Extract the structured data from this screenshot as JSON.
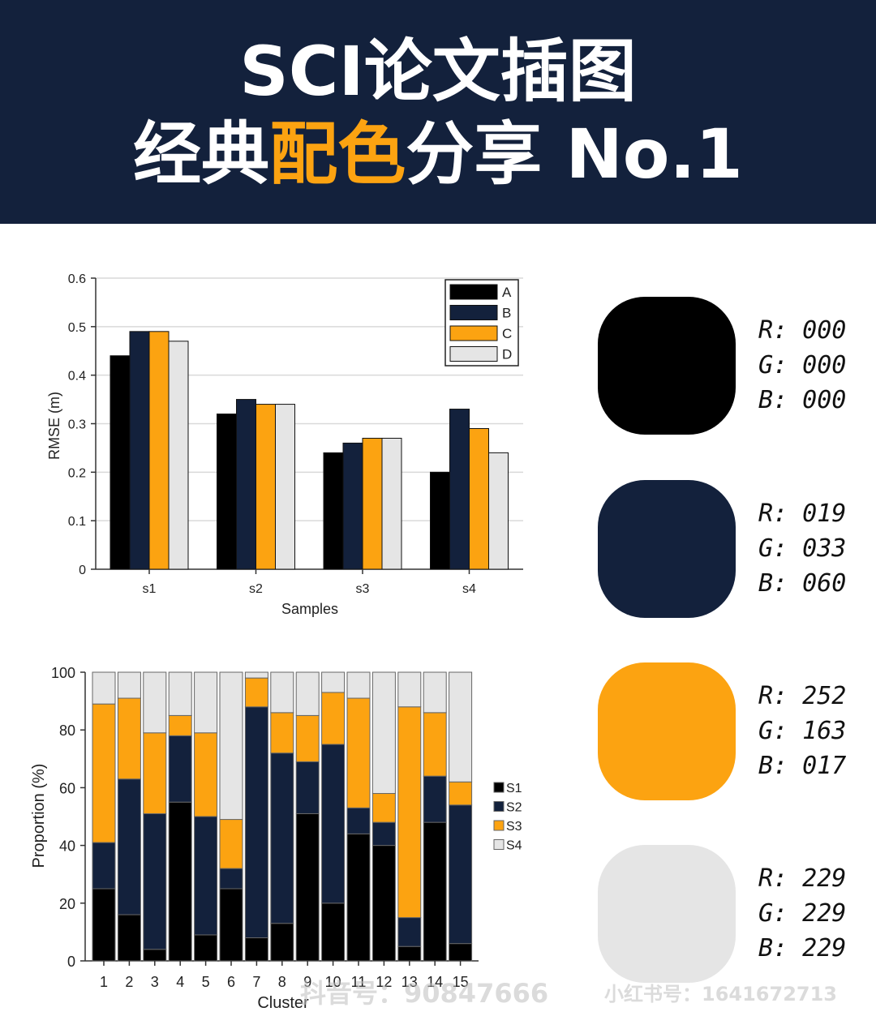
{
  "header": {
    "title_line1": "SCI论文插图",
    "title_line2_a": "经典",
    "title_line2_b": "配色",
    "title_line2_c": "分享 No.1"
  },
  "palette": [
    {
      "r": "R: 000",
      "g": "G: 000",
      "b": "B: 000",
      "color": "#000000"
    },
    {
      "r": "R: 019",
      "g": "G: 033",
      "b": "B: 060",
      "color": "#13213c"
    },
    {
      "r": "R: 252",
      "g": "G: 163",
      "b": "B: 017",
      "color": "#fca311"
    },
    {
      "r": "R: 229",
      "g": "G: 229",
      "b": "B: 229",
      "color": "#e5e5e5"
    }
  ],
  "watermark": {
    "douyin": "抖音号：90847666",
    "xhs": "小红书号：1641672713"
  },
  "chart_data": [
    {
      "type": "bar",
      "categories": [
        "s1",
        "s2",
        "s3",
        "s4"
      ],
      "series": [
        {
          "name": "A",
          "values": [
            0.44,
            0.32,
            0.24,
            0.2
          ],
          "color": "#000000"
        },
        {
          "name": "B",
          "values": [
            0.49,
            0.35,
            0.26,
            0.33
          ],
          "color": "#13213c"
        },
        {
          "name": "C",
          "values": [
            0.49,
            0.34,
            0.27,
            0.29
          ],
          "color": "#fca311"
        },
        {
          "name": "D",
          "values": [
            0.47,
            0.34,
            0.27,
            0.24
          ],
          "color": "#e5e5e5"
        }
      ],
      "xlabel": "Samples",
      "ylabel": "RMSE (m)",
      "ylim": [
        0,
        0.6
      ],
      "yticks": [
        "0",
        "0.1",
        "0.2",
        "0.3",
        "0.4",
        "0.5",
        "0.6"
      ],
      "grid": true,
      "legend": "top-right"
    },
    {
      "type": "bar",
      "stacked": true,
      "categories": [
        "1",
        "2",
        "3",
        "4",
        "5",
        "6",
        "7",
        "8",
        "9",
        "10",
        "11",
        "12",
        "13",
        "14",
        "15"
      ],
      "series": [
        {
          "name": "S1",
          "values": [
            25,
            16,
            4,
            55,
            9,
            25,
            8,
            13,
            51,
            20,
            44,
            40,
            5,
            48,
            6
          ],
          "color": "#000000"
        },
        {
          "name": "S2",
          "values": [
            16,
            47,
            47,
            23,
            41,
            7,
            80,
            59,
            18,
            55,
            9,
            8,
            10,
            16,
            48
          ],
          "color": "#13213c"
        },
        {
          "name": "S3",
          "values": [
            48,
            28,
            28,
            7,
            29,
            17,
            10,
            14,
            16,
            18,
            38,
            10,
            73,
            22,
            8
          ],
          "color": "#fca311"
        },
        {
          "name": "S4",
          "values": [
            11,
            9,
            21,
            15,
            21,
            51,
            2,
            14,
            15,
            7,
            9,
            42,
            12,
            14,
            38
          ],
          "color": "#e5e5e5"
        }
      ],
      "xlabel": "Cluster",
      "ylabel": "Proportion (%)",
      "ylim": [
        0,
        100
      ],
      "yticks": [
        "0",
        "20",
        "40",
        "60",
        "80",
        "100"
      ],
      "grid": false,
      "legend": "right"
    }
  ]
}
